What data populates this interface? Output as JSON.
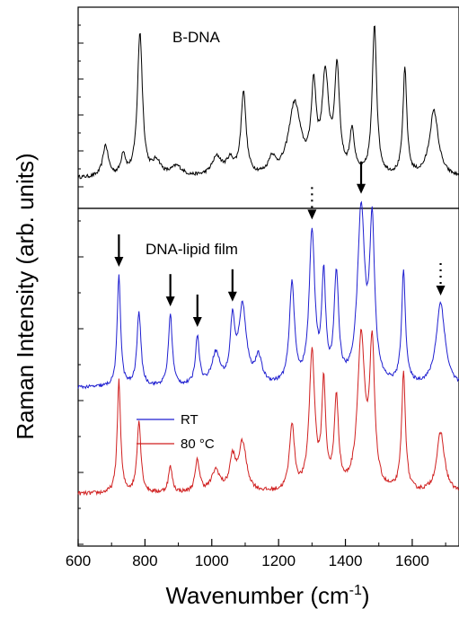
{
  "chart_data": {
    "type": "line",
    "xlabel": "Wavenumber (cm",
    "xlabel_sup": "-1",
    "xlabel_end": ")",
    "ylabel": "Raman Intensity (arb. units)",
    "xlim": [
      600,
      1740
    ],
    "x_ticks": [
      600,
      800,
      1000,
      1200,
      1400,
      1600
    ],
    "x_tick_labels": [
      "600",
      "800",
      "1000",
      "1200",
      "1400",
      "1600"
    ],
    "panels": [
      {
        "title": "B-DNA",
        "series": [
          {
            "color": "#000000",
            "baseline": 0.06,
            "noise": 0.012,
            "peaks": [
              [
                682,
                0.22,
                10
              ],
              [
                735,
                0.15,
                8
              ],
              [
                785,
                1.0,
                9
              ],
              [
                835,
                0.1,
                15
              ],
              [
                895,
                0.07,
                20
              ],
              [
                1015,
                0.13,
                18
              ],
              [
                1055,
                0.1,
                14
              ],
              [
                1095,
                0.58,
                9
              ],
              [
                1180,
                0.11,
                12
              ],
              [
                1248,
                0.5,
                22
              ],
              [
                1305,
                0.57,
                9
              ],
              [
                1340,
                0.66,
                12
              ],
              [
                1375,
                0.72,
                9
              ],
              [
                1420,
                0.3,
                8
              ],
              [
                1487,
                1.05,
                8
              ],
              [
                1578,
                0.74,
                7
              ],
              [
                1665,
                0.46,
                16
              ]
            ]
          }
        ]
      },
      {
        "title": "DNA-lipid film",
        "arrows": [
          {
            "x": 722,
            "style": "solid"
          },
          {
            "x": 876,
            "style": "solid"
          },
          {
            "x": 957,
            "style": "solid"
          },
          {
            "x": 1062,
            "style": "solid"
          },
          {
            "x": 1300,
            "style": "dotted"
          },
          {
            "x": 1447,
            "style": "solid"
          },
          {
            "x": 1685,
            "style": "dotted"
          }
        ],
        "legend": [
          {
            "name": "RT",
            "color": "#1f1fd0"
          },
          {
            "name": "80 °C",
            "color": "#d01f1f"
          }
        ],
        "series": [
          {
            "name": "RT",
            "color": "#1f1fd0",
            "offset": 1.0,
            "baseline": 0.04,
            "noise": 0.012,
            "peaks": [
              [
                722,
                0.78,
                6
              ],
              [
                782,
                0.52,
                7
              ],
              [
                876,
                0.5,
                7
              ],
              [
                957,
                0.34,
                7
              ],
              [
                1012,
                0.22,
                15
              ],
              [
                1062,
                0.42,
                8
              ],
              [
                1092,
                0.54,
                14
              ],
              [
                1140,
                0.18,
                12
              ],
              [
                1240,
                0.7,
                9
              ],
              [
                1300,
                1.05,
                10
              ],
              [
                1335,
                0.72,
                7
              ],
              [
                1373,
                0.75,
                8
              ],
              [
                1447,
                1.2,
                13
              ],
              [
                1480,
                1.08,
                9
              ],
              [
                1574,
                0.78,
                7
              ],
              [
                1685,
                0.58,
                16
              ]
            ]
          },
          {
            "name": "80 °C",
            "color": "#d01f1f",
            "offset": 0.0,
            "baseline": 0.3,
            "noise": 0.014,
            "peaks": [
              [
                722,
                0.78,
                6
              ],
              [
                782,
                0.5,
                7
              ],
              [
                876,
                0.18,
                7
              ],
              [
                957,
                0.22,
                8
              ],
              [
                1012,
                0.15,
                15
              ],
              [
                1062,
                0.22,
                10
              ],
              [
                1092,
                0.34,
                14
              ],
              [
                1240,
                0.46,
                9
              ],
              [
                1300,
                0.96,
                10
              ],
              [
                1335,
                0.72,
                7
              ],
              [
                1373,
                0.62,
                8
              ],
              [
                1447,
                1.06,
                13
              ],
              [
                1480,
                0.98,
                9
              ],
              [
                1574,
                0.82,
                7
              ],
              [
                1685,
                0.42,
                14
              ]
            ]
          }
        ]
      }
    ]
  }
}
